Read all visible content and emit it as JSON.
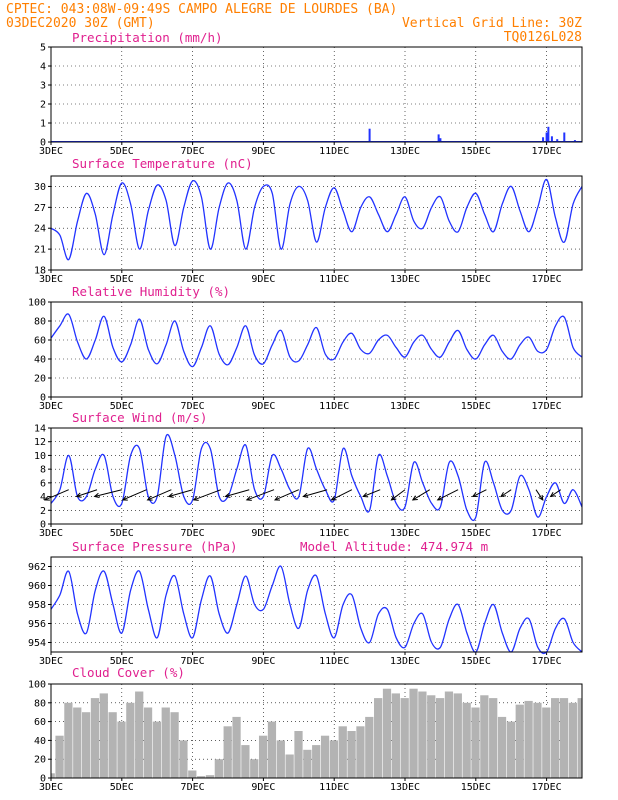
{
  "header": {
    "line1_left": "CPTEC:  043:08W-09:49S  CAMPO ALEGRE DE LOURDES (BA)",
    "line2_left": "03DEC2020 30Z (GMT)",
    "line2_right": "Vertical Grid Line: 30Z",
    "line3_right": "TQ0126L028"
  },
  "x_axis": {
    "start_day": 3,
    "end_day": 18,
    "labels": [
      {
        "day": 3,
        "text": "3DEC"
      },
      {
        "day": 5,
        "text": "5DEC"
      },
      {
        "day": 7,
        "text": "7DEC"
      },
      {
        "day": 9,
        "text": "9DEC"
      },
      {
        "day": 11,
        "text": "11DEC"
      },
      {
        "day": 13,
        "text": "13DEC"
      },
      {
        "day": 15,
        "text": "15DEC"
      },
      {
        "day": 17,
        "text": "17DEC"
      }
    ]
  },
  "chart_data": [
    {
      "type": "bar",
      "title": "Precipitation (mm/h)",
      "ylim": [
        0,
        5
      ],
      "yticks": [
        0,
        1,
        2,
        3,
        4,
        5
      ],
      "x": [
        3.5,
        4.5,
        5.5,
        6.5,
        7.5,
        12.0,
        13.95,
        14.0,
        16.9,
        17.0,
        17.05,
        17.15,
        17.3,
        17.5,
        17.8
      ],
      "values": [
        0.05,
        0.04,
        0.04,
        0.03,
        0.04,
        0.7,
        0.4,
        0.2,
        0.25,
        0.5,
        0.8,
        0.3,
        0.15,
        0.5,
        0.1
      ]
    },
    {
      "type": "line",
      "title": "Surface Temperature (nC)",
      "ylim": [
        18,
        31.5
      ],
      "yticks": [
        18,
        21,
        24,
        27,
        30
      ],
      "series": [
        {
          "x": [
            3.0,
            3.25,
            3.5,
            3.75,
            4.0,
            4.25,
            4.5,
            4.75,
            5.0,
            5.25,
            5.5,
            5.75,
            6.0,
            6.25,
            6.5,
            6.75,
            7.0,
            7.25,
            7.5,
            7.75,
            8.0,
            8.25,
            8.5,
            8.75,
            9.0,
            9.25,
            9.5,
            9.75,
            10.0,
            10.25,
            10.5,
            10.75,
            11.0,
            11.25,
            11.5,
            11.75,
            12.0,
            12.25,
            12.5,
            12.75,
            13.0,
            13.25,
            13.5,
            13.75,
            14.0,
            14.25,
            14.5,
            14.75,
            15.0,
            15.25,
            15.5,
            15.75,
            16.0,
            16.25,
            16.5,
            16.75,
            17.0,
            17.25,
            17.5,
            17.75,
            18.0
          ],
          "values": [
            24.0,
            23.0,
            19.5,
            25.0,
            29.0,
            26.0,
            20.2,
            26.0,
            30.5,
            27.5,
            21.0,
            26.5,
            30.2,
            28.0,
            21.5,
            27.0,
            30.8,
            28.5,
            21.0,
            27.0,
            30.5,
            28.0,
            21.0,
            27.0,
            30.0,
            29.0,
            21.0,
            27.5,
            30.0,
            28.0,
            22.0,
            27.0,
            29.8,
            26.5,
            23.5,
            27.0,
            28.5,
            26.0,
            23.5,
            26.0,
            28.5,
            25.0,
            24.0,
            27.0,
            28.5,
            25.0,
            23.5,
            27.0,
            29.0,
            26.0,
            23.5,
            27.5,
            30.0,
            26.5,
            23.5,
            27.0,
            31.0,
            25.5,
            22.0,
            27.5,
            30.0
          ]
        }
      ]
    },
    {
      "type": "line",
      "title": "Relative Humidity (%)",
      "ylim": [
        0,
        100
      ],
      "yticks": [
        0,
        20,
        40,
        60,
        80,
        100
      ],
      "series": [
        {
          "x": [
            3.0,
            3.25,
            3.5,
            3.75,
            4.0,
            4.25,
            4.5,
            4.75,
            5.0,
            5.25,
            5.5,
            5.75,
            6.0,
            6.25,
            6.5,
            6.75,
            7.0,
            7.25,
            7.5,
            7.75,
            8.0,
            8.25,
            8.5,
            8.75,
            9.0,
            9.25,
            9.5,
            9.75,
            10.0,
            10.25,
            10.5,
            10.75,
            11.0,
            11.25,
            11.5,
            11.75,
            12.0,
            12.25,
            12.5,
            12.75,
            13.0,
            13.25,
            13.5,
            13.75,
            14.0,
            14.25,
            14.5,
            14.75,
            15.0,
            15.25,
            15.5,
            15.75,
            16.0,
            16.25,
            16.5,
            16.75,
            17.0,
            17.25,
            17.5,
            17.75,
            18.0
          ],
          "values": [
            62,
            75,
            87,
            58,
            40,
            60,
            85,
            52,
            37,
            55,
            82,
            50,
            35,
            55,
            80,
            48,
            32,
            52,
            75,
            45,
            34,
            52,
            75,
            44,
            35,
            55,
            70,
            42,
            38,
            55,
            73,
            45,
            40,
            58,
            67,
            50,
            46,
            60,
            65,
            52,
            42,
            58,
            65,
            50,
            42,
            58,
            70,
            50,
            40,
            55,
            65,
            48,
            40,
            55,
            63,
            48,
            50,
            75,
            84,
            52,
            42
          ]
        }
      ]
    },
    {
      "type": "line",
      "title": "Surface Wind (m/s)",
      "ylim": [
        0,
        14
      ],
      "yticks": [
        0,
        2,
        4,
        6,
        8,
        10,
        12,
        14
      ],
      "series": [
        {
          "x": [
            3.0,
            3.25,
            3.5,
            3.75,
            4.0,
            4.25,
            4.5,
            4.75,
            5.0,
            5.25,
            5.5,
            5.75,
            6.0,
            6.25,
            6.5,
            6.75,
            7.0,
            7.25,
            7.5,
            7.75,
            8.0,
            8.25,
            8.5,
            8.75,
            9.0,
            9.25,
            9.5,
            9.75,
            10.0,
            10.25,
            10.5,
            10.75,
            11.0,
            11.25,
            11.5,
            11.75,
            12.0,
            12.25,
            12.5,
            12.75,
            13.0,
            13.25,
            13.5,
            13.75,
            14.0,
            14.25,
            14.5,
            14.75,
            15.0,
            15.25,
            15.5,
            15.75,
            16.0,
            16.25,
            16.5,
            16.75,
            17.0,
            17.25,
            17.5,
            17.75,
            18.0
          ],
          "values": [
            3,
            5,
            10,
            4,
            4,
            8,
            10,
            4,
            3,
            10,
            11,
            4,
            4,
            12.8,
            10,
            4,
            3.5,
            11,
            11,
            4,
            4,
            8,
            11.5,
            5,
            4,
            10,
            8,
            5,
            4,
            11,
            8,
            5,
            3.5,
            11,
            7,
            4,
            2,
            10,
            7,
            3,
            2.5,
            9,
            6,
            3,
            2.5,
            9,
            7,
            2,
            1,
            9,
            6,
            2,
            2,
            7,
            5,
            1,
            4,
            6,
            3,
            5,
            2.5
          ]
        }
      ],
      "vectors": [
        {
          "day": 3.5,
          "u": -7,
          "v": -3
        },
        {
          "day": 4.3,
          "u": -6,
          "v": -2
        },
        {
          "day": 5.0,
          "u": -8,
          "v": -2
        },
        {
          "day": 5.7,
          "u": -7,
          "v": -3
        },
        {
          "day": 6.4,
          "u": -7,
          "v": -3
        },
        {
          "day": 7.0,
          "u": -7,
          "v": -2
        },
        {
          "day": 7.8,
          "u": -8,
          "v": -3
        },
        {
          "day": 8.6,
          "u": -7,
          "v": -2
        },
        {
          "day": 9.3,
          "u": -8,
          "v": -3
        },
        {
          "day": 10.0,
          "u": -7,
          "v": -3
        },
        {
          "day": 10.8,
          "u": -7,
          "v": -2
        },
        {
          "day": 11.5,
          "u": -6,
          "v": -3
        },
        {
          "day": 12.3,
          "u": -5,
          "v": -2
        },
        {
          "day": 13.0,
          "u": -4,
          "v": -3
        },
        {
          "day": 13.7,
          "u": -5,
          "v": -3
        },
        {
          "day": 14.5,
          "u": -6,
          "v": -3
        },
        {
          "day": 15.3,
          "u": -4,
          "v": -2
        },
        {
          "day": 16.0,
          "u": -3,
          "v": -2
        },
        {
          "day": 16.7,
          "u": 2,
          "v": -3
        },
        {
          "day": 17.4,
          "u": -3,
          "v": -2
        }
      ]
    },
    {
      "type": "line",
      "title": "Surface Pressure (hPa)",
      "annotation": "Model Altitude: 474.974 m",
      "ylim": [
        953,
        963
      ],
      "yticks": [
        954,
        956,
        958,
        960,
        962
      ],
      "series": [
        {
          "x": [
            3.0,
            3.25,
            3.5,
            3.75,
            4.0,
            4.25,
            4.5,
            4.75,
            5.0,
            5.25,
            5.5,
            5.75,
            6.0,
            6.25,
            6.5,
            6.75,
            7.0,
            7.25,
            7.5,
            7.75,
            8.0,
            8.25,
            8.5,
            8.75,
            9.0,
            9.25,
            9.5,
            9.75,
            10.0,
            10.25,
            10.5,
            10.75,
            11.0,
            11.25,
            11.5,
            11.75,
            12.0,
            12.25,
            12.5,
            12.75,
            13.0,
            13.25,
            13.5,
            13.75,
            14.0,
            14.25,
            14.5,
            14.75,
            15.0,
            15.25,
            15.5,
            15.75,
            16.0,
            16.25,
            16.5,
            16.75,
            17.0,
            17.25,
            17.5,
            17.75,
            18.0
          ],
          "values": [
            957.5,
            959,
            961.5,
            957,
            955,
            959.5,
            961.5,
            958,
            955,
            959.5,
            961.5,
            957.5,
            954.5,
            959,
            961,
            957,
            954.5,
            958.5,
            961,
            957,
            955,
            958,
            961,
            958,
            957.5,
            960,
            962,
            958,
            955.5,
            959.5,
            961,
            957,
            954.5,
            958,
            959,
            955.5,
            954,
            957,
            957.5,
            954.5,
            953.5,
            956,
            957,
            954,
            953.5,
            956.5,
            958,
            955,
            953,
            956,
            958,
            955,
            953,
            955.5,
            956.5,
            953.5,
            953,
            955.5,
            956.5,
            954,
            953
          ]
        }
      ]
    },
    {
      "type": "area",
      "title": "Cloud Cover (%)",
      "ylim": [
        0,
        100
      ],
      "yticks": [
        0,
        20,
        40,
        60,
        80,
        100
      ],
      "series": [
        {
          "x": [
            3.0,
            3.25,
            3.5,
            3.75,
            4.0,
            4.25,
            4.5,
            4.75,
            5.0,
            5.25,
            5.5,
            5.75,
            6.0,
            6.25,
            6.5,
            6.75,
            7.0,
            7.25,
            7.5,
            7.75,
            8.0,
            8.25,
            8.5,
            8.75,
            9.0,
            9.25,
            9.5,
            9.75,
            10.0,
            10.25,
            10.5,
            10.75,
            11.0,
            11.25,
            11.5,
            11.75,
            12.0,
            12.25,
            12.5,
            12.75,
            13.0,
            13.25,
            13.5,
            13.75,
            14.0,
            14.25,
            14.5,
            14.75,
            15.0,
            15.25,
            15.5,
            15.75,
            16.0,
            16.25,
            16.5,
            16.75,
            17.0,
            17.25,
            17.5,
            17.75,
            18.0
          ],
          "values": [
            5,
            45,
            80,
            75,
            70,
            85,
            90,
            70,
            60,
            80,
            92,
            75,
            60,
            75,
            70,
            40,
            8,
            2,
            3,
            20,
            55,
            65,
            35,
            20,
            45,
            60,
            40,
            25,
            50,
            30,
            35,
            45,
            40,
            55,
            50,
            55,
            65,
            85,
            95,
            90,
            85,
            95,
            92,
            88,
            85,
            92,
            90,
            80,
            75,
            88,
            85,
            65,
            60,
            78,
            82,
            80,
            75,
            85,
            85,
            80,
            85
          ]
        }
      ]
    }
  ]
}
